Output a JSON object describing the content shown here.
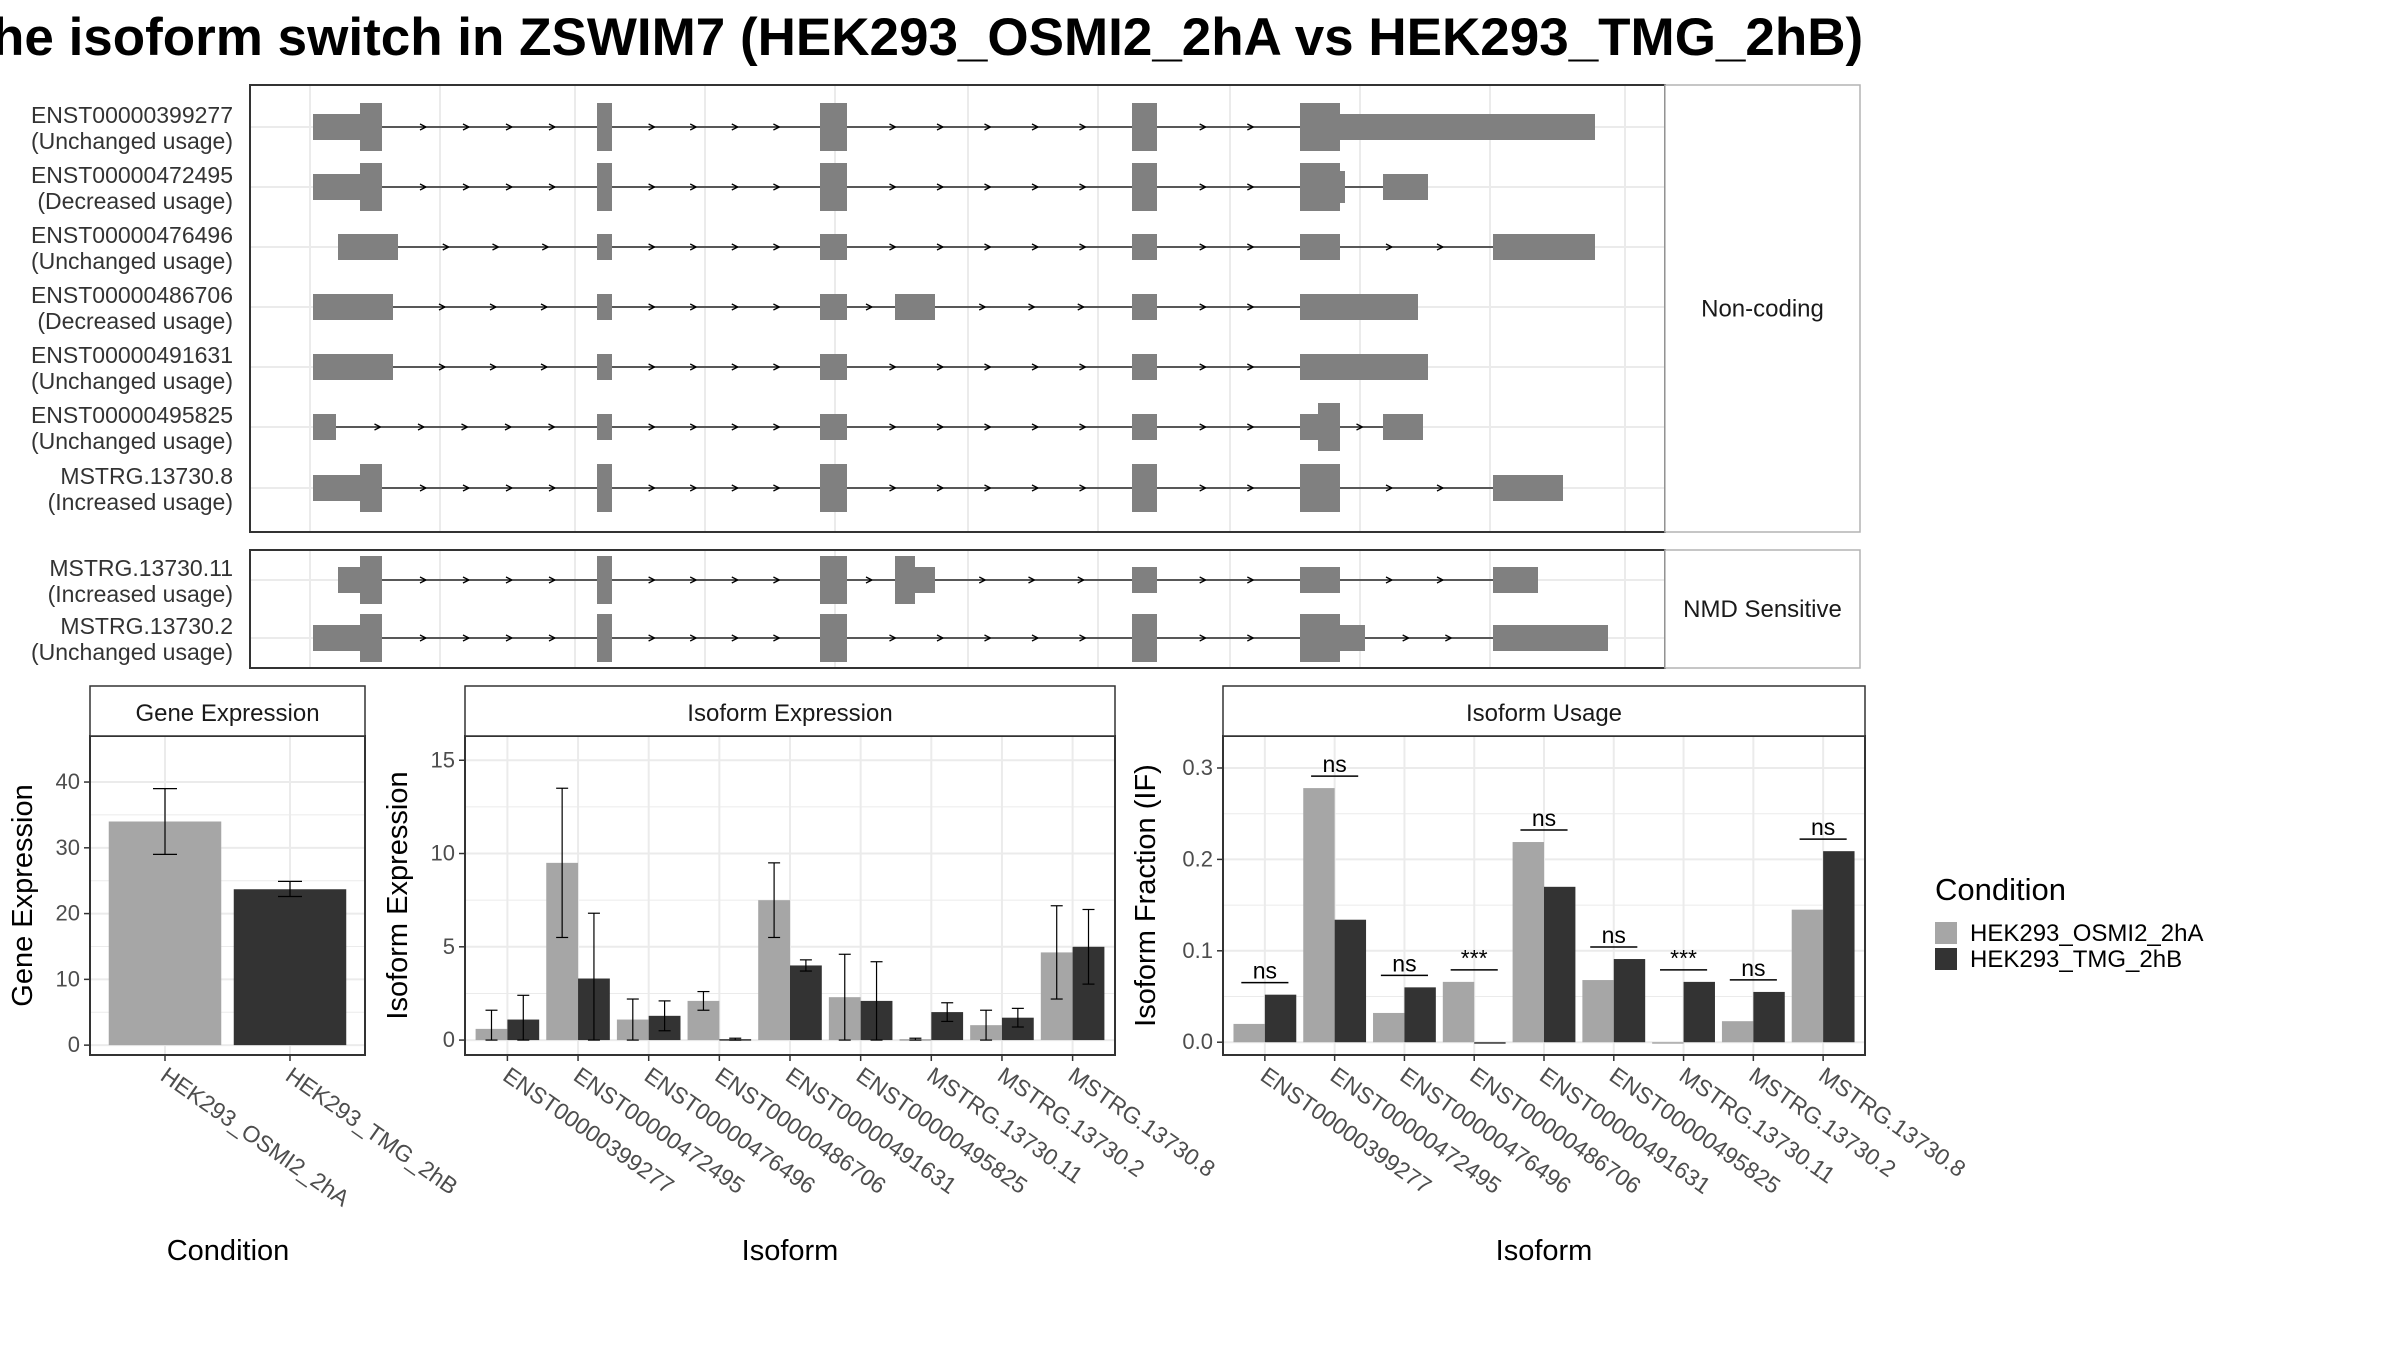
{
  "title": "he isoform switch in ZSWIM7 (HEK293_OSMI2_2hA vs HEK293_TMG_2hB)",
  "colors": {
    "exon": "#808080",
    "condition_a": "#a6a6a6",
    "condition_b": "#333333",
    "grid": "#ebebeb",
    "panel_border": "#333333",
    "strip_border": "#b3b3b3"
  },
  "structure": {
    "groups": [
      {
        "label": "Non-coding",
        "transcripts": [
          {
            "id": "ENST00000399277",
            "usage": "(Unchanged usage)"
          },
          {
            "id": "ENST00000472495",
            "usage": "(Decreased usage)"
          },
          {
            "id": "ENST00000476496",
            "usage": "(Unchanged usage)"
          },
          {
            "id": "ENST00000486706",
            "usage": "(Decreased usage)"
          },
          {
            "id": "ENST00000491631",
            "usage": "(Unchanged usage)"
          },
          {
            "id": "ENST00000495825",
            "usage": "(Unchanged usage)"
          },
          {
            "id": "MSTRG.13730.8",
            "usage": "(Increased usage)"
          }
        ]
      },
      {
        "label": "NMD Sensitive",
        "transcripts": [
          {
            "id": "MSTRG.13730.11",
            "usage": "(Increased usage)"
          },
          {
            "id": "MSTRG.13730.2",
            "usage": "(Unchanged usage)"
          }
        ]
      }
    ]
  },
  "legend": {
    "title": "Condition",
    "items": [
      "HEK293_OSMI2_2hA",
      "HEK293_TMG_2hB"
    ]
  },
  "chart_data": [
    {
      "type": "bar",
      "title": "Gene Expression",
      "xlabel": "Condition",
      "ylabel": "Gene Expression",
      "ylim": [
        -1.5,
        47
      ],
      "yticks": [
        0,
        10,
        20,
        30,
        40
      ],
      "categories": [
        "HEK293_OSMI2_2hA",
        "HEK293_TMG_2hB"
      ],
      "series": [
        {
          "name": "HEK293_OSMI2_2hA",
          "values": [
            34.0,
            null
          ],
          "err_low": [
            29.0,
            null
          ],
          "err_high": [
            39.0,
            null
          ]
        },
        {
          "name": "HEK293_TMG_2hB",
          "values": [
            null,
            23.7
          ],
          "err_low": [
            null,
            22.6
          ],
          "err_high": [
            null,
            24.9
          ]
        }
      ]
    },
    {
      "type": "bar",
      "title": "Isoform Expression",
      "xlabel": "Isoform",
      "ylabel": "Isoform Expression",
      "ylim": [
        -0.8,
        16.3
      ],
      "yticks": [
        0,
        5,
        10,
        15
      ],
      "categories": [
        "ENST00000399277",
        "ENST00000472495",
        "ENST00000476496",
        "ENST00000486706",
        "ENST00000491631",
        "ENST00000495825",
        "MSTRG.13730.11",
        "MSTRG.13730.2",
        "MSTRG.13730.8"
      ],
      "series": [
        {
          "name": "HEK293_OSMI2_2hA",
          "values": [
            0.6,
            9.5,
            1.1,
            2.1,
            7.5,
            2.3,
            0.05,
            0.8,
            4.7
          ],
          "err_low": [
            0.0,
            5.5,
            0.0,
            1.6,
            5.5,
            0.0,
            0.0,
            0.0,
            2.2
          ],
          "err_high": [
            1.6,
            13.5,
            2.2,
            2.6,
            9.5,
            4.6,
            0.1,
            1.6,
            7.2
          ]
        },
        {
          "name": "HEK293_TMG_2hB",
          "values": [
            1.1,
            3.3,
            1.3,
            0.05,
            4.0,
            2.1,
            1.5,
            1.2,
            5.0
          ],
          "err_low": [
            0.0,
            0.0,
            0.5,
            0.0,
            3.7,
            0.0,
            1.0,
            0.7,
            3.0
          ],
          "err_high": [
            2.4,
            6.8,
            2.1,
            0.1,
            4.3,
            4.2,
            2.0,
            1.7,
            7.0
          ]
        }
      ]
    },
    {
      "type": "bar",
      "title": "Isoform Usage",
      "xlabel": "Isoform",
      "ylabel": "Isoform Fraction (IF)",
      "ylim": [
        -0.014,
        0.335
      ],
      "yticks": [
        0.0,
        0.1,
        0.2,
        0.3
      ],
      "ytick_labels": [
        "0.0",
        "0.1",
        "0.2",
        "0.3"
      ],
      "categories": [
        "ENST00000399277",
        "ENST00000472495",
        "ENST00000476496",
        "ENST00000486706",
        "ENST00000491631",
        "ENST00000495825",
        "MSTRG.13730.11",
        "MSTRG.13730.2",
        "MSTRG.13730.8"
      ],
      "series": [
        {
          "name": "HEK293_OSMI2_2hA",
          "values": [
            0.02,
            0.278,
            0.032,
            0.066,
            0.219,
            0.068,
            0.0,
            0.023,
            0.145
          ]
        },
        {
          "name": "HEK293_TMG_2hB",
          "values": [
            0.052,
            0.134,
            0.06,
            0.0,
            0.17,
            0.091,
            0.066,
            0.055,
            0.209
          ]
        }
      ],
      "significance": [
        "ns",
        "ns",
        "ns",
        "***",
        "ns",
        "ns",
        "***",
        "ns",
        "ns"
      ]
    }
  ]
}
